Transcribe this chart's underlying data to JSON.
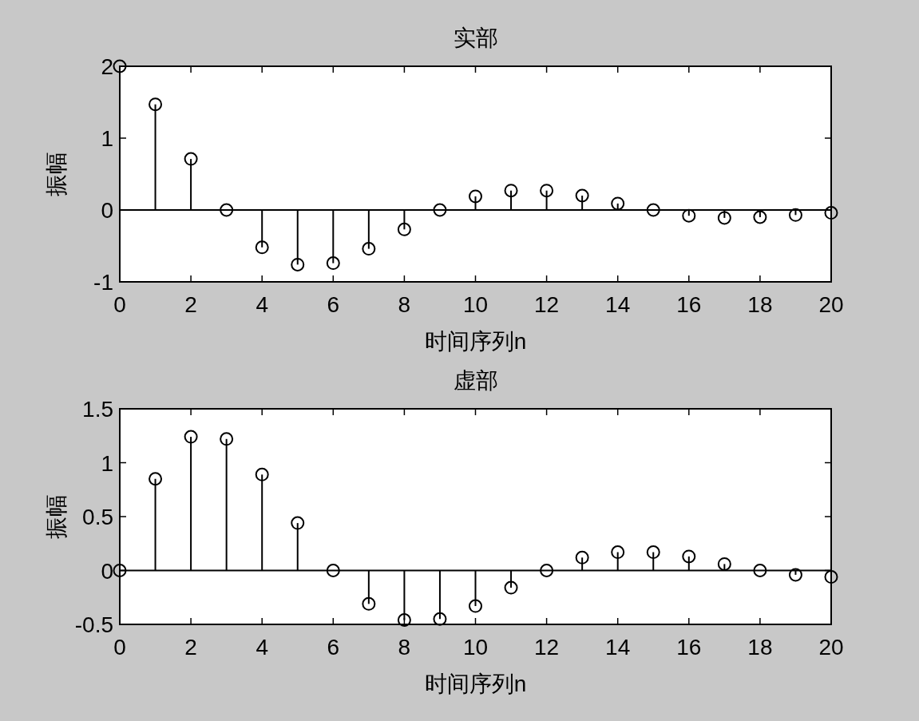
{
  "chart_data": [
    {
      "type": "lollipop",
      "title": "实部",
      "xlabel": "时间序列n",
      "ylabel": "振幅",
      "x": [
        0,
        1,
        2,
        3,
        4,
        5,
        6,
        7,
        8,
        9,
        10,
        11,
        12,
        13,
        14,
        15,
        16,
        17,
        18,
        19,
        20
      ],
      "values": [
        2.0,
        1.47,
        0.71,
        0,
        -0.52,
        -0.76,
        -0.74,
        -0.54,
        -0.27,
        0,
        0.19,
        0.27,
        0.27,
        0.2,
        0.09,
        0,
        -0.08,
        -0.11,
        -0.1,
        -0.07,
        -0.04
      ],
      "color": "#000000",
      "marker": "circle",
      "xlim": [
        0,
        20
      ],
      "ylim": [
        -1,
        2
      ],
      "xticks": [
        0,
        2,
        4,
        6,
        8,
        10,
        12,
        14,
        16,
        18,
        20
      ],
      "yticks": [
        -1,
        0,
        1,
        2
      ]
    },
    {
      "type": "lollipop",
      "title": "虚部",
      "xlabel": "时间序列n",
      "ylabel": "振幅",
      "x": [
        0,
        1,
        2,
        3,
        4,
        5,
        6,
        7,
        8,
        9,
        10,
        11,
        12,
        13,
        14,
        15,
        16,
        17,
        18,
        19,
        20
      ],
      "values": [
        0,
        0.85,
        1.24,
        1.22,
        0.89,
        0.44,
        0,
        -0.31,
        -0.46,
        -0.45,
        -0.33,
        -0.16,
        0,
        0.12,
        0.17,
        0.17,
        0.13,
        0.06,
        0,
        -0.04,
        -0.06
      ],
      "color": "#000000",
      "marker": "circle",
      "xlim": [
        0,
        20
      ],
      "ylim": [
        -0.5,
        1.5
      ],
      "xticks": [
        0,
        2,
        4,
        6,
        8,
        10,
        12,
        14,
        16,
        18,
        20
      ],
      "yticks": [
        -0.5,
        0,
        0.5,
        1,
        1.5
      ]
    }
  ]
}
